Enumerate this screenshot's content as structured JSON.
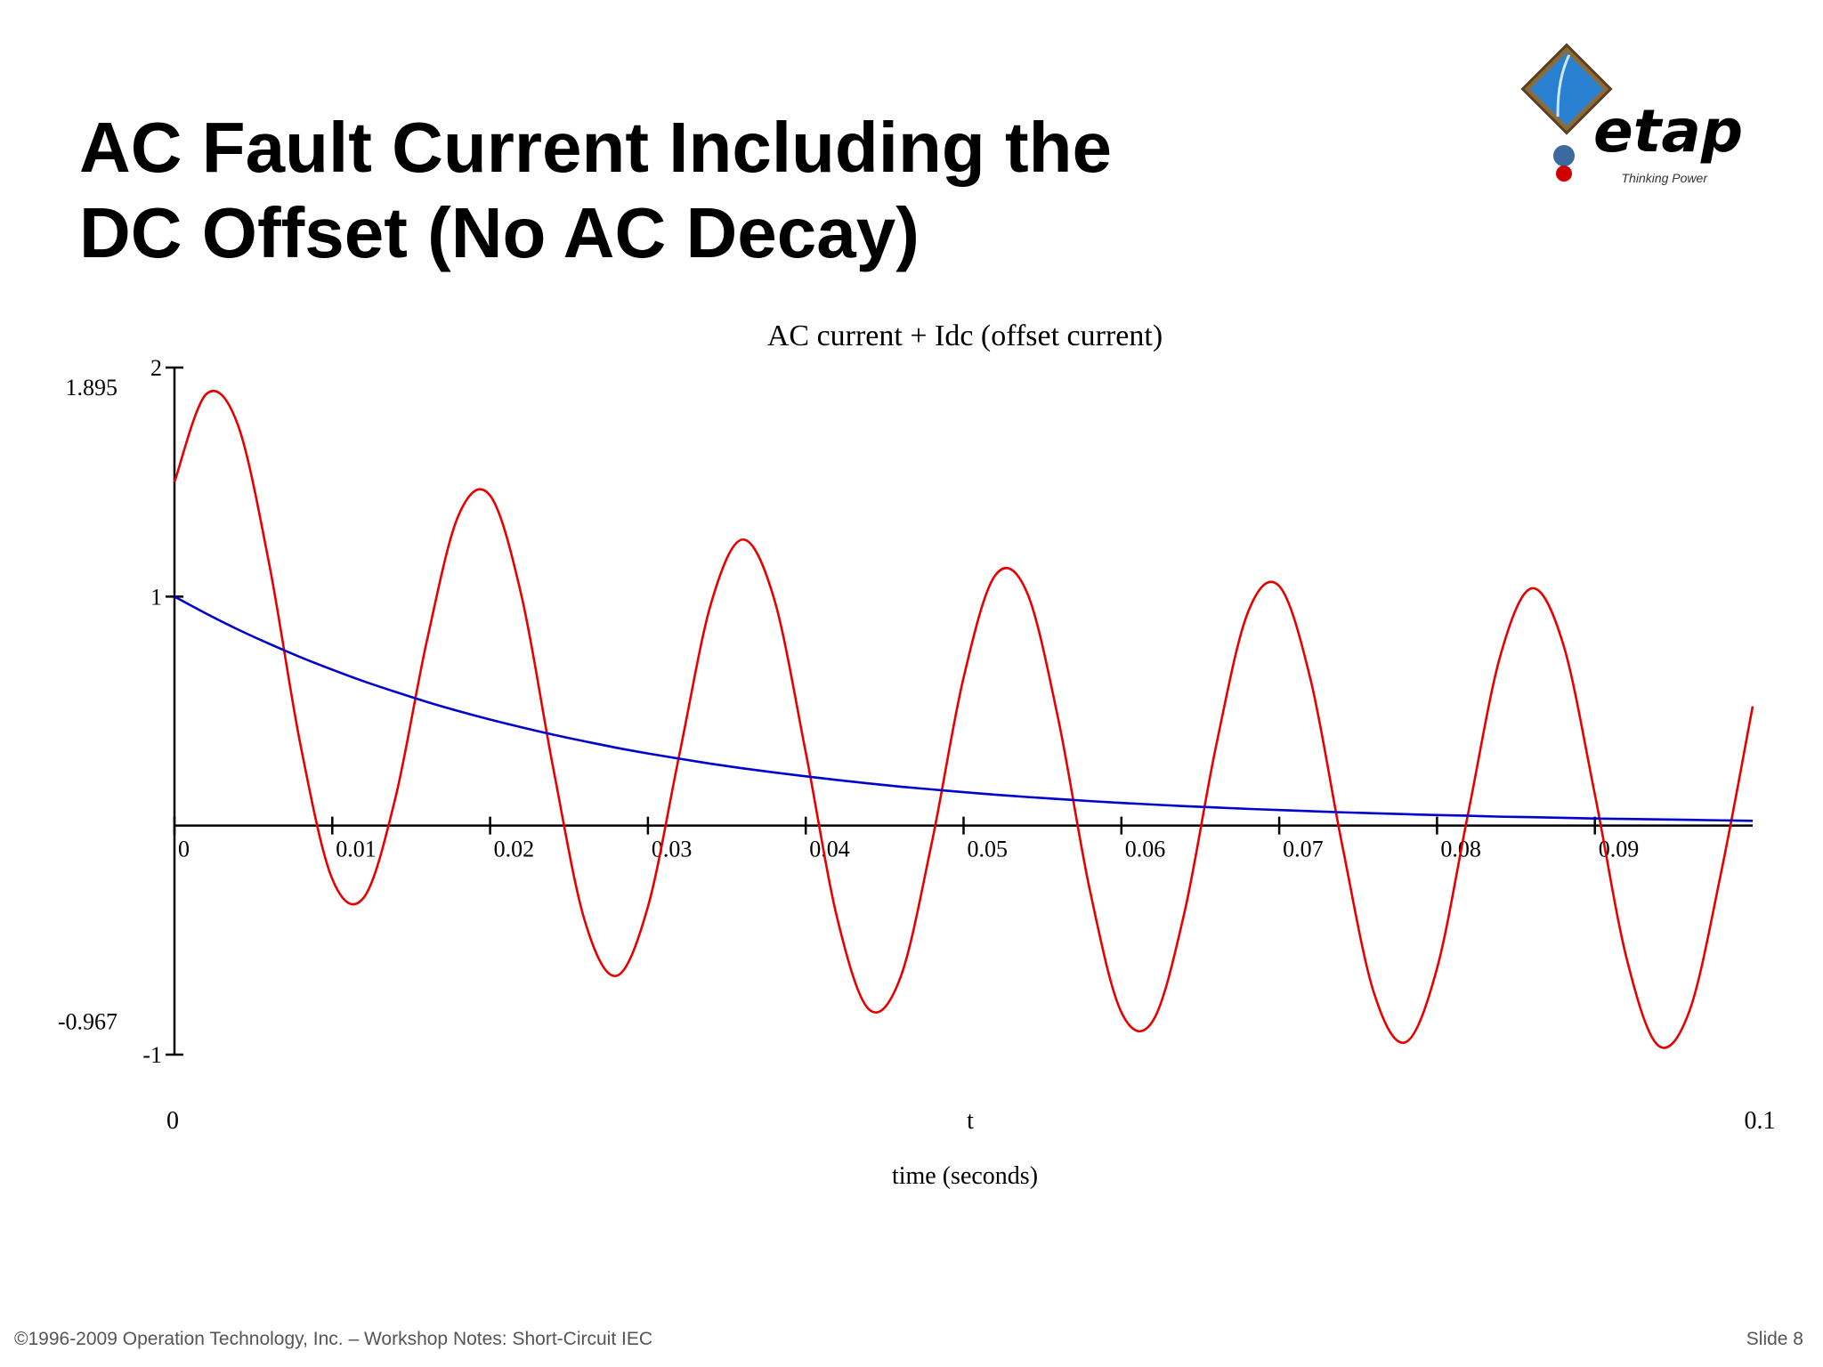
{
  "header": {
    "title_lines": [
      "AC Fault Current Including the",
      "DC Offset (No AC Decay)"
    ],
    "logo_text": "etap",
    "logo_tagline": "Thinking Power"
  },
  "chart_data": {
    "type": "line",
    "title": "AC current + Idc (offset current)",
    "xlabel": "time (seconds)",
    "x_variable": "t",
    "x": [
      0,
      0.002,
      0.004,
      0.006,
      0.008,
      0.01,
      0.012,
      0.014,
      0.016,
      0.018,
      0.02,
      0.022,
      0.024,
      0.026,
      0.028,
      0.03,
      0.032,
      0.034,
      0.036,
      0.038,
      0.04,
      0.042,
      0.044,
      0.046,
      0.048,
      0.05,
      0.052,
      0.054,
      0.056,
      0.058,
      0.06,
      0.062,
      0.064,
      0.066,
      0.068,
      0.07,
      0.072,
      0.074,
      0.076,
      0.078,
      0.08,
      0.082,
      0.084,
      0.086,
      0.088,
      0.09,
      0.092,
      0.094,
      0.096,
      0.098,
      0.1
    ],
    "series": [
      {
        "color": "#e60000",
        "values": [
          1.5,
          1.883,
          1.753,
          1.143,
          0.347,
          -0.233,
          -0.314,
          0.121,
          0.809,
          1.355,
          1.441,
          1.0,
          0.251,
          -0.416,
          -0.656,
          -0.354,
          0.313,
          0.97,
          1.249,
          0.989,
          0.32,
          -0.406,
          -0.802,
          -0.663,
          -0.07,
          0.646,
          1.092,
          1.021,
          0.465,
          -0.281,
          -0.815,
          -0.852,
          -0.378,
          0.348,
          0.928,
          1.046,
          0.634,
          -0.088,
          -0.73,
          -0.946,
          -0.623,
          0.064,
          0.739,
          1.036,
          0.791,
          0.136,
          -0.576,
          -0.959,
          -0.808,
          -0.205,
          0.521
        ]
      },
      {
        "color": "#0000cc",
        "values": [
          1.0,
          0.926,
          0.857,
          0.794,
          0.735,
          0.681,
          0.63,
          0.584,
          0.54,
          0.5,
          0.463,
          0.429,
          0.397,
          0.368,
          0.34,
          0.315,
          0.292,
          0.27,
          0.25,
          0.232,
          0.215,
          0.199,
          0.184,
          0.17,
          0.158,
          0.146,
          0.135,
          0.125,
          0.116,
          0.107,
          0.099,
          0.092,
          0.085,
          0.079,
          0.073,
          0.068,
          0.063,
          0.058,
          0.054,
          0.05,
          0.046,
          0.043,
          0.039,
          0.037,
          0.034,
          0.031,
          0.029,
          0.027,
          0.025,
          0.023,
          0.021
        ]
      }
    ],
    "xlim": [
      0,
      0.1
    ],
    "ylim": [
      -1,
      2
    ],
    "xticks": [
      0,
      0.01,
      0.02,
      0.03,
      0.04,
      0.05,
      0.06,
      0.07,
      0.08,
      0.09
    ],
    "yticks": [
      -1,
      1,
      2
    ],
    "data_range_labels": [
      -0.967,
      1.895
    ]
  },
  "footer": {
    "copyright": "©1996-2009 Operation Technology, Inc. – Workshop Notes: Short-Circuit IEC",
    "slide": "Slide 8"
  }
}
